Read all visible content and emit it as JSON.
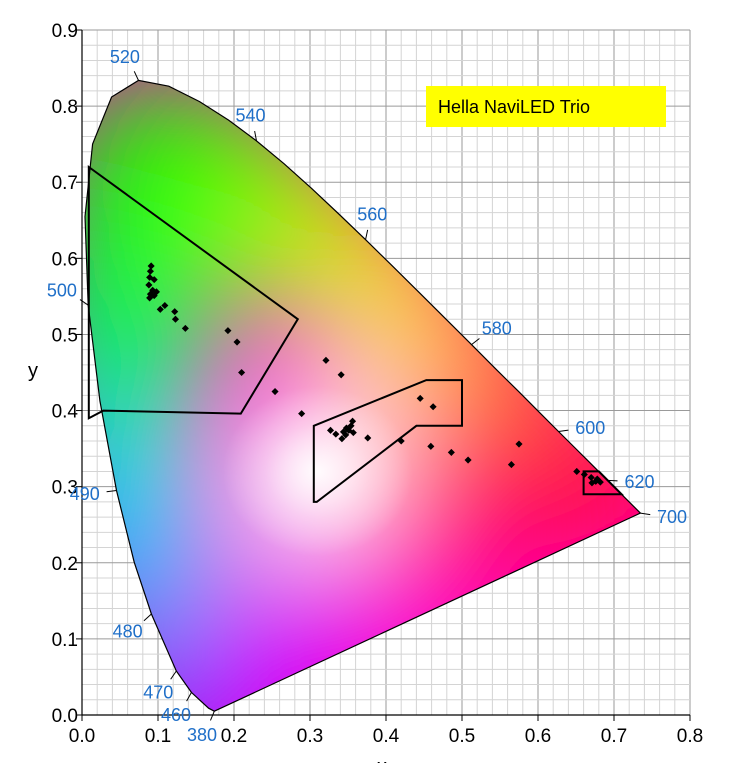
{
  "chart_data": {
    "type": "scatter",
    "title": "Hella NaviLED Trio",
    "xlabel": "x",
    "ylabel": "y",
    "xlim": [
      0.0,
      0.8
    ],
    "ylim": [
      0.0,
      0.9
    ],
    "x_ticks": [
      "0.0",
      "0.1",
      "0.2",
      "0.3",
      "0.4",
      "0.5",
      "0.6",
      "0.7",
      "0.8"
    ],
    "y_ticks": [
      "0.0",
      "0.1",
      "0.2",
      "0.3",
      "0.4",
      "0.5",
      "0.6",
      "0.7",
      "0.8",
      "0.9"
    ],
    "grid": true,
    "legend_box_color": "#ffff00",
    "point_color": "#000000",
    "spectral_locus": [
      [
        0.1741,
        0.005
      ],
      [
        0.1666,
        0.0089
      ],
      [
        0.144,
        0.0297
      ],
      [
        0.1241,
        0.0578
      ],
      [
        0.0913,
        0.1327
      ],
      [
        0.0687,
        0.2007
      ],
      [
        0.0454,
        0.295
      ],
      [
        0.0235,
        0.4127
      ],
      [
        0.0082,
        0.5384
      ],
      [
        0.0039,
        0.6548
      ],
      [
        0.0139,
        0.7502
      ],
      [
        0.0389,
        0.812
      ],
      [
        0.0743,
        0.8338
      ],
      [
        0.1142,
        0.8262
      ],
      [
        0.1547,
        0.8059
      ],
      [
        0.1929,
        0.7816
      ],
      [
        0.2296,
        0.7543
      ],
      [
        0.2658,
        0.7243
      ],
      [
        0.3016,
        0.6923
      ],
      [
        0.3373,
        0.6589
      ],
      [
        0.3731,
        0.6245
      ],
      [
        0.4087,
        0.5896
      ],
      [
        0.4441,
        0.5547
      ],
      [
        0.4788,
        0.5202
      ],
      [
        0.5125,
        0.4866
      ],
      [
        0.5448,
        0.4544
      ],
      [
        0.5752,
        0.4242
      ],
      [
        0.6029,
        0.3965
      ],
      [
        0.627,
        0.3725
      ],
      [
        0.6482,
        0.3514
      ],
      [
        0.6658,
        0.334
      ],
      [
        0.6915,
        0.3083
      ],
      [
        0.7079,
        0.292
      ],
      [
        0.7347,
        0.2653
      ]
    ],
    "wavelength_labels": [
      {
        "text": "380",
        "x": 0.1741,
        "y": 0.005
      },
      {
        "text": "460",
        "x": 0.144,
        "y": 0.0297
      },
      {
        "text": "470",
        "x": 0.1241,
        "y": 0.0578
      },
      {
        "text": "480",
        "x": 0.0913,
        "y": 0.1327
      },
      {
        "text": "490",
        "x": 0.0454,
        "y": 0.295
      },
      {
        "text": "500",
        "x": 0.0082,
        "y": 0.5384
      },
      {
        "text": "520",
        "x": 0.0743,
        "y": 0.8338
      },
      {
        "text": "540",
        "x": 0.2296,
        "y": 0.7543
      },
      {
        "text": "560",
        "x": 0.3731,
        "y": 0.6245
      },
      {
        "text": "580",
        "x": 0.5125,
        "y": 0.4866
      },
      {
        "text": "600",
        "x": 0.627,
        "y": 0.3725
      },
      {
        "text": "620",
        "x": 0.6915,
        "y": 0.3083
      },
      {
        "text": "700",
        "x": 0.7347,
        "y": 0.2653
      }
    ],
    "regions": [
      {
        "name": "green",
        "points": [
          [
            0.009,
            0.72
          ],
          [
            0.284,
            0.52
          ],
          [
            0.209,
            0.396
          ],
          [
            0.028,
            0.4
          ],
          [
            0.009,
            0.39
          ]
        ]
      },
      {
        "name": "white",
        "points": [
          [
            0.305,
            0.38
          ],
          [
            0.305,
            0.28
          ],
          [
            0.309,
            0.28
          ],
          [
            0.44,
            0.38
          ],
          [
            0.5,
            0.38
          ],
          [
            0.5,
            0.44
          ],
          [
            0.453,
            0.44
          ]
        ]
      },
      {
        "name": "red",
        "points": [
          [
            0.66,
            0.29
          ],
          [
            0.66,
            0.32
          ],
          [
            0.68,
            0.32
          ],
          [
            0.71,
            0.29
          ]
        ]
      }
    ],
    "series": [
      {
        "values": [
          [
            0.088,
            0.565
          ],
          [
            0.089,
            0.575
          ],
          [
            0.09,
            0.583
          ],
          [
            0.091,
            0.59
          ],
          [
            0.09,
            0.553
          ],
          [
            0.093,
            0.558
          ],
          [
            0.095,
            0.551
          ],
          [
            0.098,
            0.556
          ],
          [
            0.095,
            0.572
          ],
          [
            0.089,
            0.548
          ],
          [
            0.103,
            0.533
          ],
          [
            0.109,
            0.538
          ],
          [
            0.122,
            0.53
          ],
          [
            0.123,
            0.52
          ],
          [
            0.136,
            0.508
          ],
          [
            0.192,
            0.505
          ],
          [
            0.204,
            0.49
          ],
          [
            0.21,
            0.45
          ],
          [
            0.254,
            0.425
          ],
          [
            0.289,
            0.396
          ],
          [
            0.321,
            0.466
          ],
          [
            0.341,
            0.447
          ],
          [
            0.327,
            0.374
          ],
          [
            0.334,
            0.369
          ],
          [
            0.342,
            0.363
          ],
          [
            0.347,
            0.368
          ],
          [
            0.351,
            0.374
          ],
          [
            0.354,
            0.38
          ],
          [
            0.356,
            0.386
          ],
          [
            0.348,
            0.377
          ],
          [
            0.357,
            0.371
          ],
          [
            0.344,
            0.372
          ],
          [
            0.376,
            0.364
          ],
          [
            0.42,
            0.36
          ],
          [
            0.445,
            0.416
          ],
          [
            0.462,
            0.405
          ],
          [
            0.459,
            0.353
          ],
          [
            0.486,
            0.345
          ],
          [
            0.508,
            0.335
          ],
          [
            0.565,
            0.329
          ],
          [
            0.575,
            0.356
          ],
          [
            0.651,
            0.32
          ],
          [
            0.661,
            0.316
          ],
          [
            0.67,
            0.312
          ],
          [
            0.676,
            0.307
          ],
          [
            0.682,
            0.306
          ],
          [
            0.678,
            0.31
          ],
          [
            0.671,
            0.305
          ]
        ]
      }
    ]
  }
}
